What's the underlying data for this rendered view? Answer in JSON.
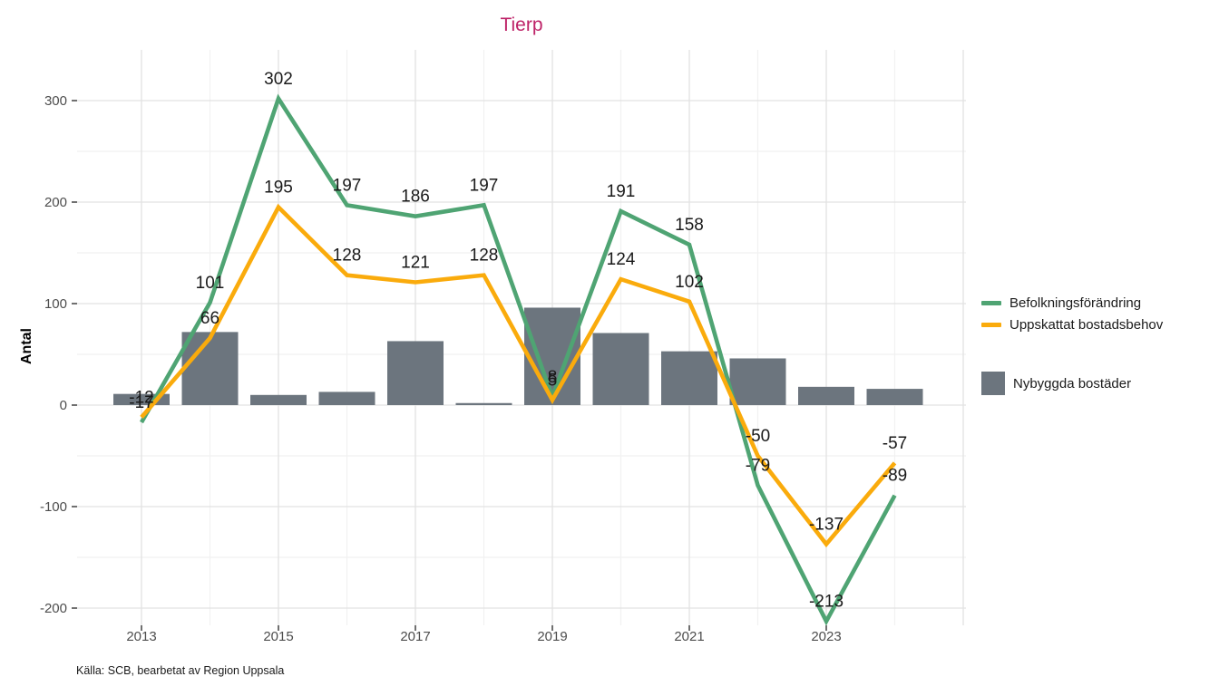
{
  "title": "Tierp",
  "title_color": "#BE2368",
  "y_axis_label": "Antal",
  "source": "Källa: SCB, bearbetat av Region Uppsala",
  "legend": {
    "lines": [
      {
        "label": "Befolkningsförändring",
        "color": "#4FA473"
      },
      {
        "label": "Uppskattat bostadsbehov",
        "color": "#FAAB0C"
      }
    ],
    "bar": {
      "label": "Nybyggda bostäder",
      "color": "#6C757E"
    }
  },
  "chart_data": {
    "type": "line+bar",
    "title": "Tierp",
    "xlabel": "",
    "ylabel": "Antal",
    "x": [
      2013,
      2014,
      2015,
      2016,
      2017,
      2018,
      2019,
      2020,
      2021,
      2022,
      2023,
      2024
    ],
    "series": [
      {
        "name": "Befolkningsförändring",
        "type": "line",
        "color": "#4FA473",
        "values": [
          -17,
          101,
          302,
          197,
          186,
          197,
          8,
          191,
          158,
          -79,
          -213,
          -89
        ]
      },
      {
        "name": "Uppskattat bostadsbehov",
        "type": "line",
        "color": "#FAAB0C",
        "values": [
          -12,
          66,
          195,
          128,
          121,
          128,
          5,
          124,
          102,
          -50,
          -137,
          -57
        ]
      },
      {
        "name": "Nybyggda bostäder",
        "type": "bar",
        "color": "#6C757E",
        "values": [
          11,
          72,
          10,
          13,
          63,
          2,
          96,
          71,
          53,
          46,
          18,
          16
        ]
      }
    ],
    "ylim": [
      -240,
      350
    ],
    "y_ticks": [
      300,
      200,
      100,
      0,
      -100,
      -200
    ],
    "y_minor": [
      250,
      150,
      50,
      -50,
      -150
    ],
    "x_ticks": [
      2013,
      2015,
      2017,
      2019,
      2021,
      2023
    ],
    "grid": true,
    "legend_position": "right"
  }
}
